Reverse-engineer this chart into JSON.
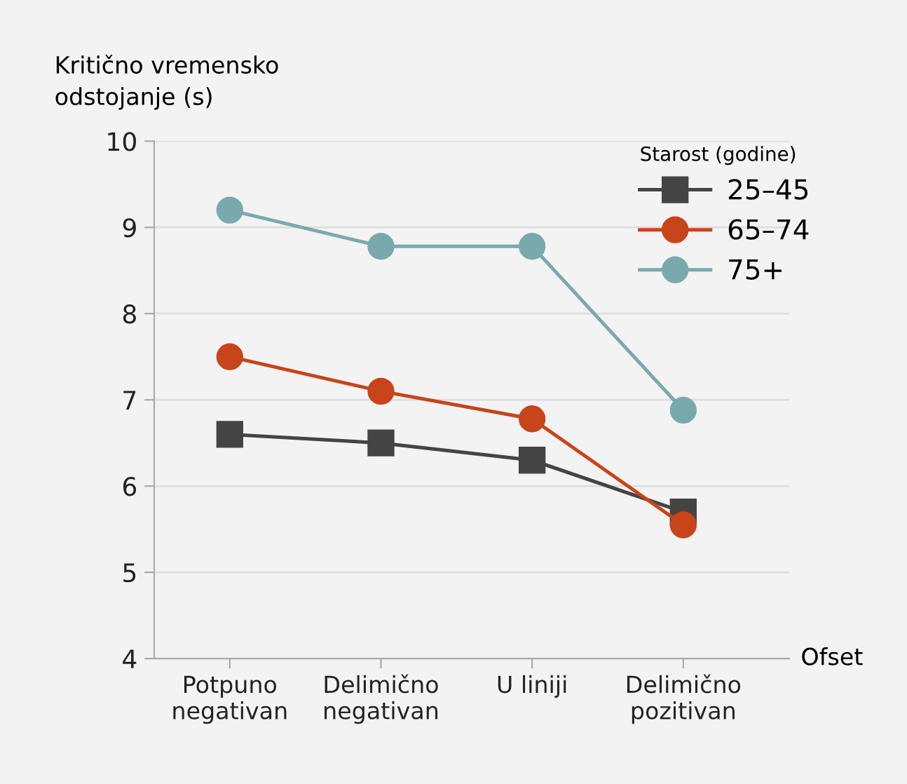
{
  "chart_data": {
    "type": "line",
    "ylabel": "Kritično vremensko\nodstojanje (s)",
    "xlabel": "Ofset",
    "legend_title": "Starost (godine)",
    "categories": [
      "Potpuno\nnegativan",
      "Delimično\nnegativan",
      "U liniji",
      "Delimično\npozitivan"
    ],
    "series": [
      {
        "name": "25–45",
        "color": "#444444",
        "marker": "square",
        "values": [
          6.6,
          6.5,
          6.3,
          5.7
        ]
      },
      {
        "name": "65–74",
        "color": "#c8441a",
        "marker": "circle",
        "values": [
          7.5,
          7.1,
          6.78,
          5.55
        ]
      },
      {
        "name": "75+",
        "color": "#79a9ad",
        "marker": "circle",
        "values": [
          9.2,
          8.78,
          8.78,
          6.88
        ]
      }
    ],
    "ylim": [
      4,
      10
    ],
    "yticks": [
      4,
      5,
      6,
      7,
      8,
      9,
      10
    ],
    "grid": "y",
    "legend": "top right",
    "line_style": "solid"
  }
}
